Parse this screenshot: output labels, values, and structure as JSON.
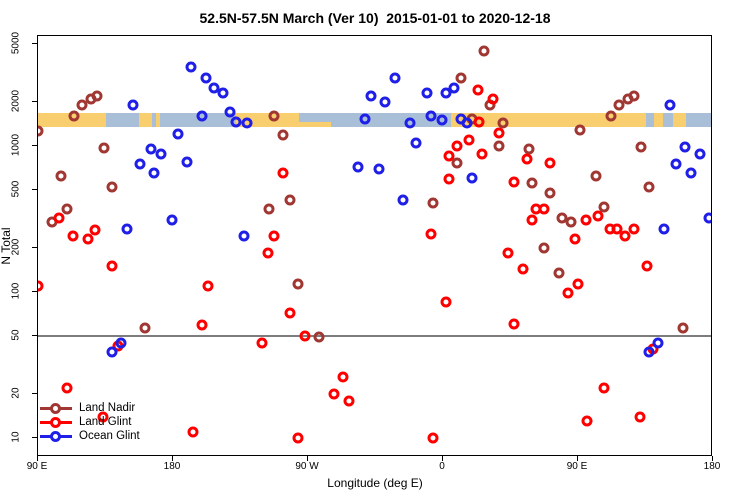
{
  "chart_data": {
    "type": "scatter",
    "title": "52.5N-57.5N March (Ver 10)  2015-01-01 to 2020-12-18",
    "xlabel": "Longitude (deg E)",
    "ylabel": "N Total",
    "x_axis": {
      "range": [
        90,
        540
      ],
      "ticks": [
        {
          "lon": 90,
          "label": "90 E"
        },
        {
          "lon": 180,
          "label": "180"
        },
        {
          "lon": 270,
          "label": "90 W"
        },
        {
          "lon": 360,
          "label": "0"
        },
        {
          "lon": 450,
          "label": "90 E"
        },
        {
          "lon": 540,
          "label": "180"
        }
      ]
    },
    "y_axis": {
      "scale": "log",
      "range": [
        7.4,
        5660
      ],
      "ticks": [
        5000,
        2000,
        1000,
        500,
        200,
        100,
        50,
        20,
        10
      ]
    },
    "reference_line": {
      "value": 50,
      "color": "#7d7d7d"
    },
    "map_band": {
      "description": "latitude-band land/ocean strip",
      "top_value": 1680,
      "bottom_value": 1350,
      "land_color": "#F8CE6E",
      "ocean_color": "#A9BFD8",
      "segments": [
        {
          "type": "land",
          "from": 90,
          "to": 135.3
        },
        {
          "type": "ocean",
          "from": 135.3,
          "to": 222
        },
        {
          "type": "land",
          "from": 157,
          "to": 166
        },
        {
          "type": "land",
          "from": 168.5,
          "to": 171
        },
        {
          "type": "land",
          "from": 222,
          "to": 285.3
        },
        {
          "type": "ocean",
          "from": 264,
          "to": 285,
          "partial": "top"
        },
        {
          "type": "ocean",
          "from": 285.3,
          "to": 365.3
        },
        {
          "type": "land",
          "from": 365.3,
          "to": 495.3
        },
        {
          "type": "ocean",
          "from": 495.3,
          "to": 540
        },
        {
          "type": "land",
          "from": 500.7,
          "to": 506.7
        },
        {
          "type": "land",
          "from": 513.3,
          "to": 522
        }
      ]
    },
    "legend": {
      "position": "bottom-left"
    },
    "series": [
      {
        "name": "Land Nadir",
        "color": "#A03732",
        "points": [
          [
            119,
            1900
          ],
          [
            125,
            2100
          ],
          [
            129,
            2200
          ],
          [
            114,
            1600
          ],
          [
            90,
            1270
          ],
          [
            134,
            970
          ],
          [
            105,
            620
          ],
          [
            139,
            520
          ],
          [
            109,
            370
          ],
          [
            99,
            300
          ],
          [
            247,
            1600
          ],
          [
            253,
            1190
          ],
          [
            258,
            430
          ],
          [
            244,
            370
          ],
          [
            387,
            4500
          ],
          [
            372,
            2900
          ],
          [
            391,
            1900
          ],
          [
            379,
            1540
          ],
          [
            400,
            1440
          ],
          [
            397,
            1000
          ],
          [
            369,
            770
          ],
          [
            417,
            950
          ],
          [
            419,
            560
          ],
          [
            353,
            410
          ],
          [
            431,
            480
          ],
          [
            477,
            1900
          ],
          [
            483,
            2100
          ],
          [
            487,
            2200
          ],
          [
            472,
            1600
          ],
          [
            451,
            1290
          ],
          [
            492,
            980
          ],
          [
            462,
            620
          ],
          [
            497,
            520
          ],
          [
            467,
            380
          ],
          [
            439,
            320
          ],
          [
            445,
            300
          ],
          [
            161,
            57
          ],
          [
            263,
            114
          ],
          [
            277,
            49
          ],
          [
            427,
            200
          ],
          [
            437,
            134
          ],
          [
            520,
            57
          ]
        ]
      },
      {
        "name": "Land Glint",
        "color": "#FF0000",
        "points": [
          [
            104,
            320
          ],
          [
            113,
            243
          ],
          [
            123,
            231
          ],
          [
            128,
            267
          ],
          [
            253,
            650
          ],
          [
            247,
            240
          ],
          [
            383,
            2400
          ],
          [
            393,
            2100
          ],
          [
            384,
            1470
          ],
          [
            377,
            1100
          ],
          [
            397,
            1230
          ],
          [
            369,
            1000
          ],
          [
            364,
            850
          ],
          [
            386,
            880
          ],
          [
            416,
            810
          ],
          [
            431,
            770
          ],
          [
            364,
            590
          ],
          [
            407,
            570
          ],
          [
            422,
            370
          ],
          [
            427,
            370
          ],
          [
            419,
            310
          ],
          [
            352,
            250
          ],
          [
            471,
            270
          ],
          [
            476,
            270
          ],
          [
            481,
            240
          ],
          [
            487,
            270
          ],
          [
            448,
            230
          ],
          [
            455,
            310
          ],
          [
            463,
            330
          ],
          [
            139,
            150
          ],
          [
            90,
            110
          ],
          [
            203,
            110
          ],
          [
            199,
            59
          ],
          [
            143,
            43
          ],
          [
            109,
            22
          ],
          [
            133,
            14
          ],
          [
            193,
            11
          ],
          [
            243,
            185
          ],
          [
            258,
            72
          ],
          [
            268,
            50
          ],
          [
            239,
            45
          ],
          [
            293,
            26
          ],
          [
            287,
            20
          ],
          [
            297,
            18
          ],
          [
            263,
            10
          ],
          [
            403,
            185
          ],
          [
            413,
            143
          ],
          [
            362,
            86
          ],
          [
            407,
            60
          ],
          [
            353,
            10
          ],
          [
            450,
            114
          ],
          [
            443,
            98
          ],
          [
            496,
            150
          ],
          [
            500,
            41
          ],
          [
            467,
            22
          ],
          [
            491,
            14
          ],
          [
            456,
            13
          ]
        ]
      },
      {
        "name": "Ocean Glint",
        "color": "#1F1FE8",
        "points": [
          [
            192,
            3500
          ],
          [
            202,
            2900
          ],
          [
            153,
            1900
          ],
          [
            199,
            1600
          ],
          [
            183,
            1210
          ],
          [
            165,
            950
          ],
          [
            172,
            880
          ],
          [
            158,
            750
          ],
          [
            189,
            780
          ],
          [
            167,
            650
          ],
          [
            179,
            310
          ],
          [
            149,
            270
          ],
          [
            207,
            2500
          ],
          [
            213,
            2300
          ],
          [
            218,
            1700
          ],
          [
            222,
            1460
          ],
          [
            229,
            1440
          ],
          [
            312,
            2200
          ],
          [
            321,
            2000
          ],
          [
            308,
            1530
          ],
          [
            303,
            720
          ],
          [
            317,
            700
          ],
          [
            227,
            240
          ],
          [
            328,
            2900
          ],
          [
            349,
            2300
          ],
          [
            367,
            2500
          ],
          [
            362,
            2300
          ],
          [
            352,
            1600
          ],
          [
            359,
            1500
          ],
          [
            372,
            1540
          ],
          [
            376,
            1440
          ],
          [
            338,
            1440
          ],
          [
            342,
            1050
          ],
          [
            379,
            600
          ],
          [
            333,
            430
          ],
          [
            511,
            1900
          ],
          [
            521,
            980
          ],
          [
            531,
            880
          ],
          [
            515,
            750
          ],
          [
            525,
            650
          ],
          [
            537,
            320
          ],
          [
            507,
            270
          ],
          [
            503,
            45
          ],
          [
            497,
            39
          ],
          [
            145,
            45
          ],
          [
            139,
            39
          ]
        ]
      }
    ]
  }
}
